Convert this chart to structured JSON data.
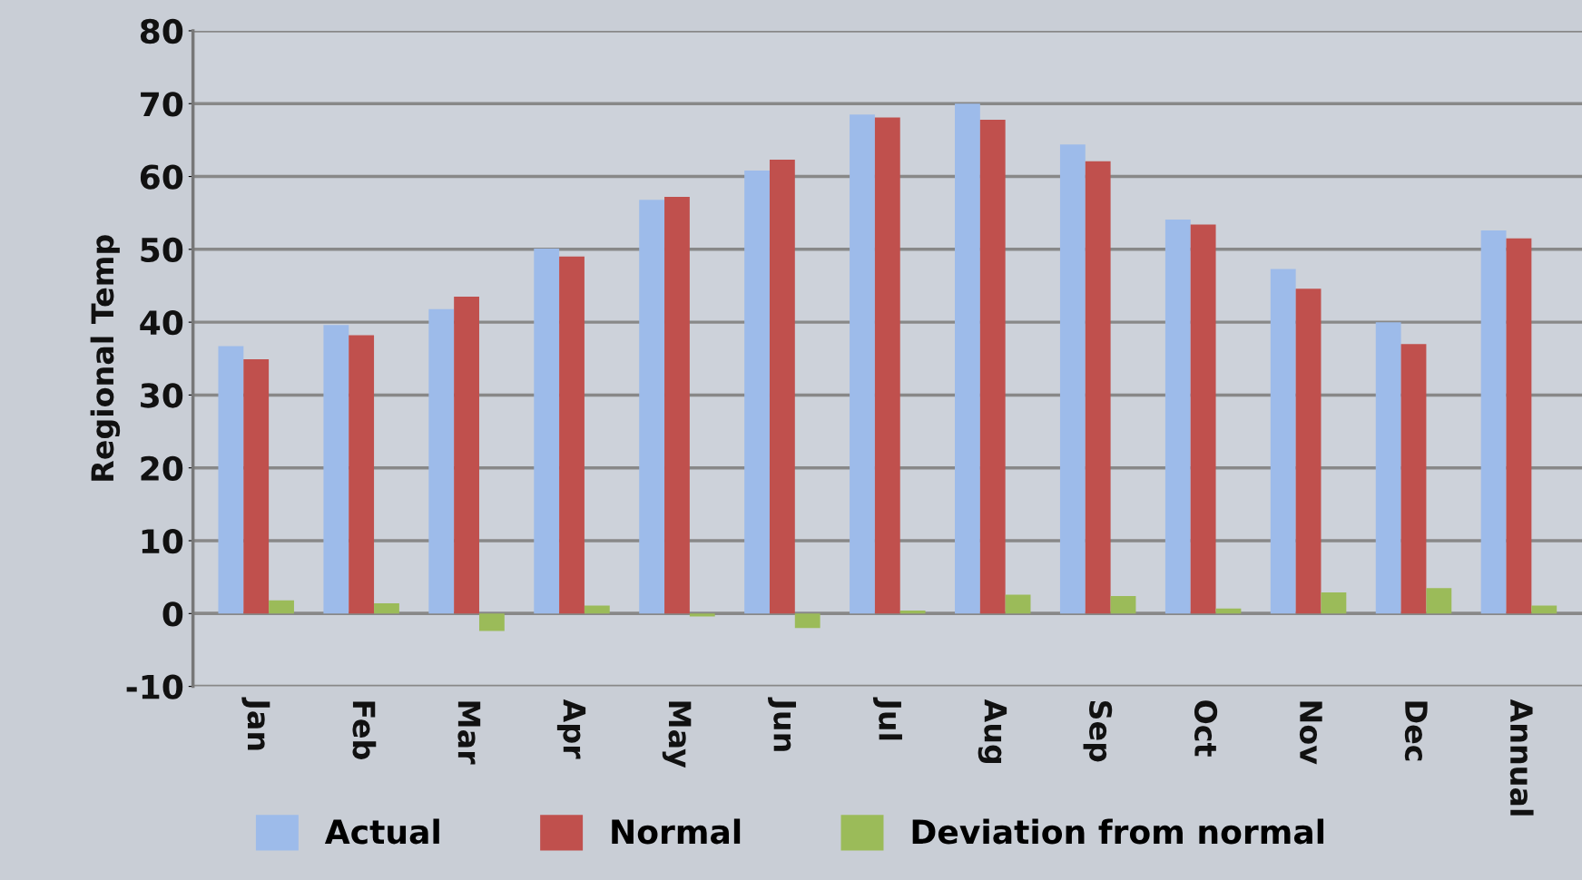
{
  "chart_data": {
    "type": "bar",
    "ylabel": "Regional Temp",
    "categories": [
      "Jan",
      "Feb",
      "Mar",
      "Apr",
      "May",
      "Jun",
      "Jul",
      "Aug",
      "Sep",
      "Oct",
      "Nov",
      "Dec",
      "Annual"
    ],
    "series": [
      {
        "name": "Actual",
        "color": "#9dbbea",
        "values": [
          36.7,
          39.6,
          41.8,
          50.1,
          56.8,
          60.8,
          68.5,
          70.0,
          64.4,
          54.1,
          47.3,
          40.0,
          52.6
        ]
      },
      {
        "name": "Normal",
        "color": "#c0504d",
        "values": [
          34.9,
          38.2,
          43.5,
          49.0,
          57.2,
          62.3,
          68.1,
          67.8,
          62.1,
          53.4,
          44.6,
          37.0,
          51.5
        ]
      },
      {
        "name": "Deviation from normal",
        "color": "#9bbb59",
        "values": [
          1.8,
          1.4,
          -2.4,
          1.1,
          -0.4,
          -2.0,
          0.4,
          2.6,
          2.4,
          0.7,
          2.9,
          3.5,
          1.1
        ]
      }
    ],
    "ylim": [
      -10,
      80
    ],
    "yticks": [
      -10,
      0,
      10,
      20,
      30,
      40,
      50,
      60,
      70,
      80
    ],
    "grid": "y",
    "legend": "bottom"
  }
}
